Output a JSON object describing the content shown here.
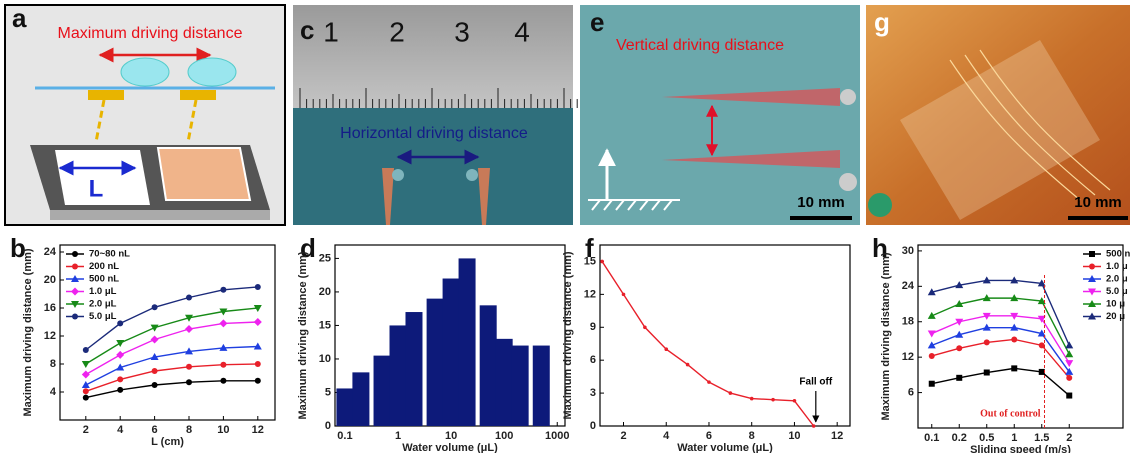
{
  "panels": {
    "a": {
      "label": "a",
      "title": "Maximum driving distance",
      "symbol": "L"
    },
    "c": {
      "label": "c",
      "ruler": [
        "1",
        "2",
        "3",
        "4"
      ],
      "caption": "Horizontal driving distance"
    },
    "e": {
      "label": "e",
      "caption": "Vertical driving distance",
      "scale": "10 mm"
    },
    "g": {
      "label": "g",
      "scale": "10 mm"
    }
  },
  "chart_data": [
    {
      "type": "line",
      "label": "b",
      "xlabel": "L (cm)",
      "ylabel": "Maximum driving distance (mm)",
      "xlabel_color": "#2233dd",
      "ylabel_color": "#e02020",
      "x": [
        2,
        4,
        6,
        8,
        10,
        12
      ],
      "xlim": [
        0.5,
        13
      ],
      "xticks": [
        2,
        4,
        6,
        8,
        10,
        12
      ],
      "ylim": [
        0,
        25
      ],
      "yticks": [
        4,
        8,
        12,
        16,
        20,
        24
      ],
      "legend": "upper left",
      "series": [
        {
          "name": "70~80 nL",
          "color": "#000000",
          "marker": "circle",
          "values": [
            3.2,
            4.3,
            5.0,
            5.4,
            5.6,
            5.6
          ]
        },
        {
          "name": "200  nL",
          "color": "#e8202a",
          "marker": "circle",
          "values": [
            4.1,
            5.8,
            7.0,
            7.6,
            7.9,
            8.0
          ]
        },
        {
          "name": "500  nL",
          "color": "#1f3fe0",
          "marker": "triangle",
          "values": [
            5.0,
            7.5,
            9.0,
            9.8,
            10.3,
            10.5
          ]
        },
        {
          "name": "1.0  μL",
          "color": "#ee22ee",
          "marker": "diamond",
          "values": [
            6.5,
            9.3,
            11.5,
            13.0,
            13.8,
            14.0
          ]
        },
        {
          "name": "2.0  μL",
          "color": "#178a17",
          "marker": "triangle-down",
          "values": [
            8.0,
            11.0,
            13.2,
            14.6,
            15.5,
            16.0
          ]
        },
        {
          "name": "5.0  μL",
          "color": "#1b2a7a",
          "marker": "circle",
          "values": [
            10.0,
            13.8,
            16.1,
            17.5,
            18.6,
            19.0
          ]
        }
      ]
    },
    {
      "type": "bar",
      "label": "d",
      "xlabel": "Water volume (μL)",
      "ylabel": "Maximum driving distance (mm)",
      "color": "#0d1a7a",
      "xscale": "log",
      "x": [
        0.1,
        0.2,
        0.5,
        1,
        2,
        5,
        10,
        20,
        50,
        100,
        200,
        500
      ],
      "values": [
        5.6,
        8,
        10.5,
        15,
        17,
        19,
        22,
        25,
        18,
        13,
        12,
        12
      ],
      "xlim": [
        0.065,
        1400
      ],
      "xticks": [
        0.1,
        1,
        10,
        100,
        1000
      ],
      "ylim": [
        0,
        27
      ],
      "yticks": [
        0,
        5,
        10,
        15,
        20,
        25
      ]
    },
    {
      "type": "line",
      "label": "f",
      "xlabel": "Water volume (μL)",
      "ylabel": "Maximum driving distance (mm)",
      "x": [
        1,
        2,
        3,
        4,
        5,
        6,
        7,
        8,
        9,
        10,
        10.9
      ],
      "series": [
        {
          "color": "#e8202a",
          "marker": "dot",
          "values": [
            15,
            12,
            9,
            7,
            5.6,
            4,
            3,
            2.5,
            2.4,
            2.3,
            0
          ]
        }
      ],
      "xlim": [
        0.9,
        12.6
      ],
      "xticks": [
        2,
        4,
        6,
        8,
        10,
        12
      ],
      "ylim": [
        0,
        16.5
      ],
      "yticks": [
        0,
        3,
        6,
        9,
        12,
        15
      ],
      "annotation": {
        "text": "Fall off",
        "x": 11
      }
    },
    {
      "type": "line",
      "label": "h",
      "xlabel": "Sliding speed (m/s)",
      "ylabel": "Maximum driving distance (mm)",
      "categories": [
        "0.1",
        "0.2",
        "0.5",
        "1",
        "1.5",
        "2"
      ],
      "ylim": [
        0,
        31
      ],
      "yticks": [
        6,
        12,
        18,
        24,
        30
      ],
      "legend": "upper right",
      "series": [
        {
          "name": "500 n",
          "color": "#000000",
          "marker": "square",
          "values": [
            7.5,
            8.5,
            9.4,
            10.1,
            9.5,
            5.5
          ]
        },
        {
          "name": "1.0 μ",
          "color": "#e8202a",
          "marker": "circle",
          "values": [
            12.2,
            13.5,
            14.5,
            15,
            14,
            8.5
          ]
        },
        {
          "name": "2.0 μ",
          "color": "#1f3fe0",
          "marker": "triangle",
          "values": [
            14,
            15.8,
            17,
            17,
            16,
            9.5
          ]
        },
        {
          "name": "5.0 μ",
          "color": "#ee22ee",
          "marker": "triangle-down",
          "values": [
            16,
            18,
            19,
            19,
            18.5,
            11
          ]
        },
        {
          "name": "10 μ",
          "color": "#178a17",
          "marker": "triangle",
          "values": [
            19,
            21,
            22,
            22,
            21.5,
            12.5
          ]
        },
        {
          "name": "20 μ",
          "color": "#1b2a7a",
          "marker": "triangle",
          "values": [
            23,
            24.2,
            25,
            25,
            24.5,
            14
          ]
        }
      ],
      "annotation": {
        "text": "Out of control",
        "x": 4.6
      }
    }
  ]
}
